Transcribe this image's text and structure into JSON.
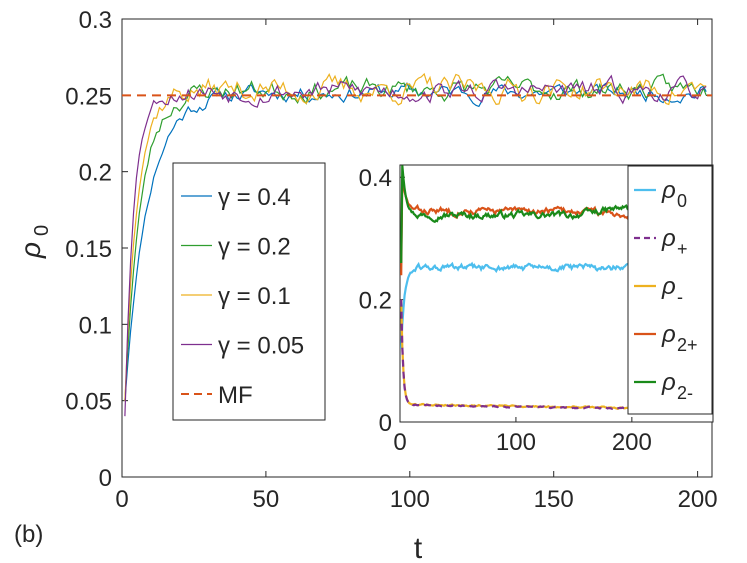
{
  "panel_label": "(b)",
  "chart_data": [
    {
      "id": "main",
      "type": "line",
      "xlabel": "t",
      "ylabel": "ρ",
      "ylabel_sub": "0",
      "xlim": [
        0,
        205
      ],
      "ylim": [
        0,
        0.3
      ],
      "xticks": [
        0,
        50,
        100,
        150,
        200
      ],
      "xtick_labels": [
        "0",
        "50",
        "100",
        "150",
        "200"
      ],
      "yticks": [
        0,
        0.05,
        0.1,
        0.15,
        0.2,
        0.25,
        0.3
      ],
      "ytick_labels": [
        "0",
        "0.05",
        "0.1",
        "0.15",
        "0.2",
        "0.25",
        "0.3"
      ],
      "legend_position": "center-left",
      "series": [
        {
          "name": "γ = 0.4",
          "color": "#0072bd",
          "style": "solid",
          "kind": "rise",
          "rate": 0.13,
          "y0": 0.05,
          "plateau": 0.252,
          "noise": 0.004,
          "seed": 11
        },
        {
          "name": "γ = 0.2",
          "color": "#2f9e2f",
          "style": "solid",
          "kind": "rise",
          "rate": 0.18,
          "y0": 0.05,
          "plateau": 0.254,
          "noise": 0.005,
          "seed": 23
        },
        {
          "name": "γ = 0.1",
          "color": "#edb120",
          "style": "solid",
          "kind": "rise",
          "rate": 0.24,
          "y0": 0.05,
          "plateau": 0.254,
          "noise": 0.006,
          "seed": 37
        },
        {
          "name": "γ = 0.05",
          "color": "#7e2f8e",
          "style": "solid",
          "kind": "rise",
          "rate": 0.33,
          "y0": 0.04,
          "plateau": 0.253,
          "noise": 0.005,
          "seed": 53
        },
        {
          "name": "MF",
          "color": "#d95319",
          "style": "dashed",
          "kind": "const",
          "value": 0.25
        }
      ]
    },
    {
      "id": "inset",
      "type": "line",
      "xlim": [
        0,
        270
      ],
      "ylim": [
        0,
        0.42
      ],
      "xticks": [
        0,
        100,
        200
      ],
      "xtick_labels": [
        "0",
        "100",
        "200"
      ],
      "yticks": [
        0,
        0.2,
        0.4
      ],
      "ytick_labels": [
        "0",
        "0.2",
        "0.4"
      ],
      "legend_position": "right",
      "series": [
        {
          "name": "ρ",
          "sub": "0",
          "color": "#4dbeee",
          "style": "solid",
          "kind": "rise",
          "rate": 0.35,
          "y0": 0.12,
          "plateau": 0.252,
          "noise": 0.004,
          "seed": 61
        },
        {
          "name": "ρ",
          "sub": "+",
          "color": "#7e2f8e",
          "style": "dashed",
          "kind": "decay",
          "y0": 0.2,
          "plateau": 0.028,
          "rate": 0.6,
          "slope": -3e-05,
          "noise": 0.001,
          "seed": 71
        },
        {
          "name": "ρ",
          "sub": "-",
          "color": "#edb120",
          "style": "solid",
          "kind": "decay",
          "y0": 0.2,
          "plateau": 0.029,
          "rate": 0.6,
          "slope": -3e-05,
          "noise": 0.001,
          "seed": 79
        },
        {
          "name": "ρ",
          "sub": "2+",
          "color": "#d95319",
          "style": "solid",
          "kind": "peak",
          "y0": 0.24,
          "peak": 0.4,
          "plateau": 0.345,
          "rate": 0.3,
          "trend": -0.0,
          "end": 0.335,
          "noise": 0.004,
          "seed": 83
        },
        {
          "name": "ρ",
          "sub": "2-",
          "color": "#1a8a1a",
          "style": "solid",
          "kind": "peak",
          "y0": 0.26,
          "peak": 0.42,
          "plateau": 0.338,
          "rate": 0.3,
          "trend": 0.0,
          "end": 0.36,
          "noise": 0.004,
          "seed": 97
        }
      ]
    }
  ]
}
